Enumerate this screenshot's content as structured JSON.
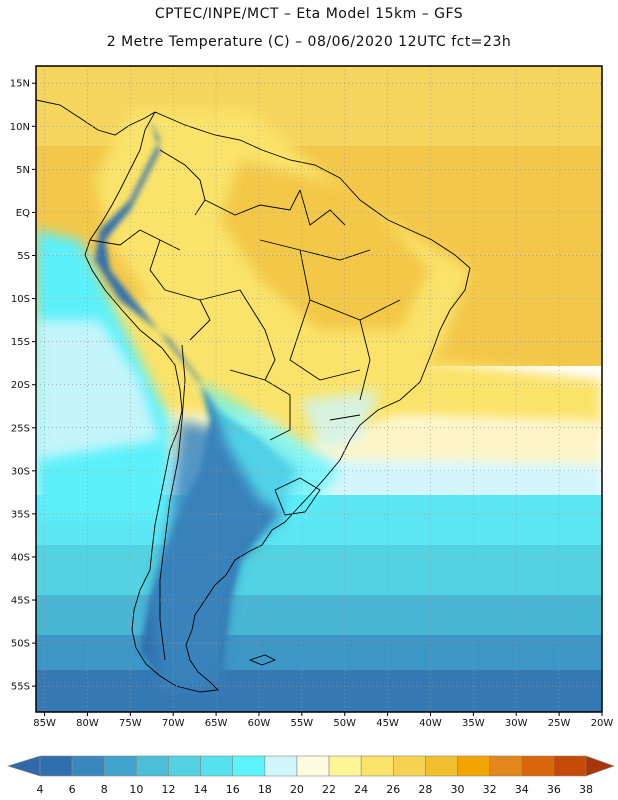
{
  "header": {
    "line1": "CPTEC/INPE/MCT –  Eta Model 15km – GFS",
    "line2": "2 Metre Temperature (C) – 08/06/2020 12UTC fct=23h"
  },
  "map": {
    "projection": "lat-lon",
    "lon_range": [
      -86,
      -20
    ],
    "lat_range": [
      -58,
      17
    ],
    "lat_ticks": [
      {
        "value": 15,
        "label": "15N"
      },
      {
        "value": 10,
        "label": "10N"
      },
      {
        "value": 5,
        "label": "5N"
      },
      {
        "value": 0,
        "label": "EQ"
      },
      {
        "value": -5,
        "label": "5S"
      },
      {
        "value": -10,
        "label": "10S"
      },
      {
        "value": -15,
        "label": "15S"
      },
      {
        "value": -20,
        "label": "20S"
      },
      {
        "value": -25,
        "label": "25S"
      },
      {
        "value": -30,
        "label": "30S"
      },
      {
        "value": -35,
        "label": "35S"
      },
      {
        "value": -40,
        "label": "40S"
      },
      {
        "value": -45,
        "label": "45S"
      },
      {
        "value": -50,
        "label": "50S"
      },
      {
        "value": -55,
        "label": "55S"
      }
    ],
    "lon_ticks": [
      {
        "value": -85,
        "label": "85W"
      },
      {
        "value": -80,
        "label": "80W"
      },
      {
        "value": -75,
        "label": "75W"
      },
      {
        "value": -70,
        "label": "70W"
      },
      {
        "value": -65,
        "label": "65W"
      },
      {
        "value": -60,
        "label": "60W"
      },
      {
        "value": -55,
        "label": "55W"
      },
      {
        "value": -50,
        "label": "50W"
      },
      {
        "value": -45,
        "label": "45W"
      },
      {
        "value": -40,
        "label": "40W"
      },
      {
        "value": -35,
        "label": "35W"
      },
      {
        "value": -30,
        "label": "30W"
      },
      {
        "value": -25,
        "label": "25W"
      },
      {
        "value": -20,
        "label": "20W"
      }
    ],
    "gridlines": "dotted"
  },
  "colorbar": {
    "labels": [
      "4",
      "6",
      "8",
      "10",
      "12",
      "14",
      "16",
      "18",
      "20",
      "22",
      "24",
      "26",
      "28",
      "30",
      "32",
      "34",
      "36",
      "38"
    ],
    "colors": [
      "#3068ab",
      "#2f6fae",
      "#3a86bf",
      "#40a4cd",
      "#4cbfd8",
      "#52d2e2",
      "#55e2ee",
      "#5cf4fb",
      "#cff6fb",
      "#fffbe0",
      "#fdf596",
      "#fae36a",
      "#f6d253",
      "#f0bf2e",
      "#f2a502",
      "#e3861c",
      "#d8660a",
      "#c44a06",
      "#a8360a"
    ]
  }
}
